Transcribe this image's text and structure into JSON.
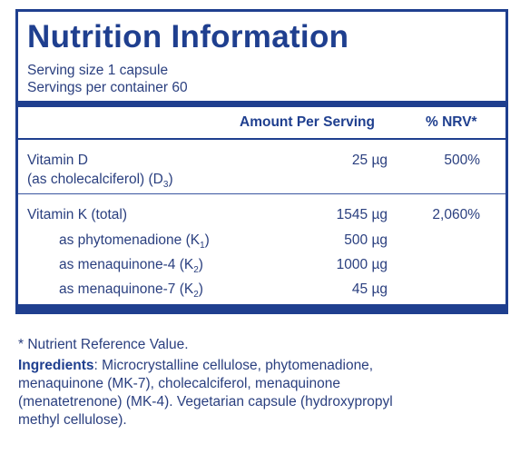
{
  "title": "Nutrition Information",
  "serving_size": "Serving size  1 capsule",
  "servings_per_container": "Servings per container  60",
  "columns": {
    "amount": "Amount Per Serving",
    "nrv": "% NRV*"
  },
  "rows": {
    "vitamin_d": {
      "label": "Vitamin D",
      "sublabel": "(as cholecalciferol) (D",
      "sublabel_subscript": "3",
      "sublabel_end": ")",
      "amount": "25 µg",
      "nrv": "500%"
    },
    "vitamin_k": {
      "label": "Vitamin K (total)",
      "amount": "1545 µg",
      "nrv": "2,060%"
    },
    "k1": {
      "label": "as phytomenadione (K",
      "subscript": "1",
      "label_end": ")",
      "amount": "500 µg"
    },
    "mk4": {
      "label": "as menaquinone-4 (K",
      "subscript": "2",
      "label_end": ")",
      "amount": "1000 µg"
    },
    "mk7": {
      "label": "as menaquinone-7 (K",
      "subscript": "2",
      "label_end": ")",
      "amount": "45 µg"
    }
  },
  "footnote": "* Nutrient Reference Value.",
  "ingredients": {
    "heading": "Ingredients",
    "line1": ": Microcrystalline cellulose, phytomenadione,",
    "line2": "menaquinone (MK-7), cholecalciferol, menaquinone",
    "line3": "(menatetrenone) (MK-4). Vegetarian capsule (hydroxypropyl",
    "line4": "methyl cellulose)."
  },
  "colors": {
    "brand_blue": "#1f3f8f",
    "text_blue": "#2a3f7f"
  }
}
